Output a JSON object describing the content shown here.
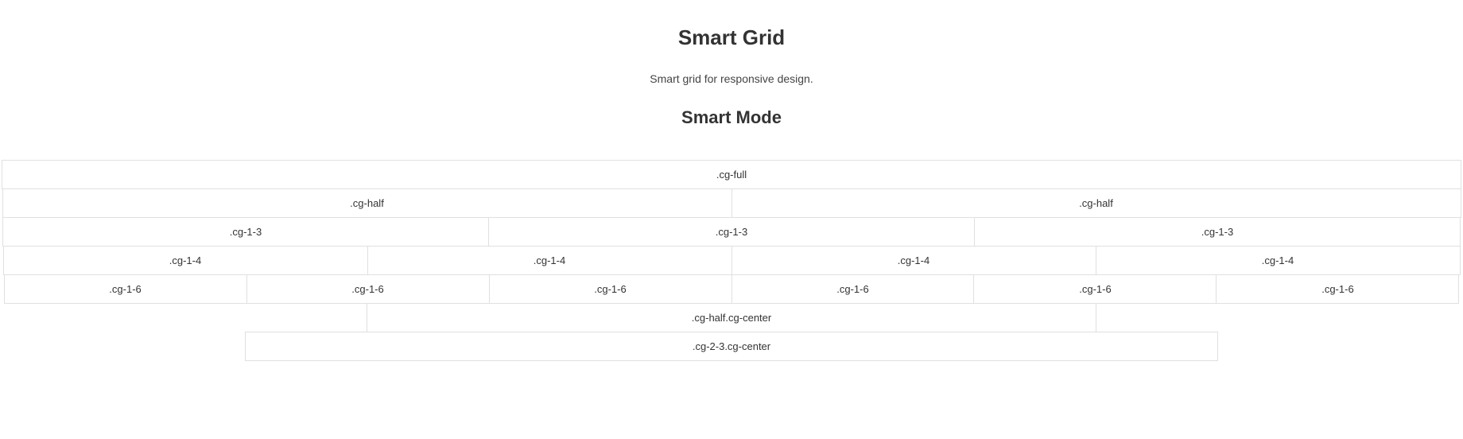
{
  "header": {
    "title": "Smart Grid",
    "subtitle": "Smart grid for responsive design.",
    "section_title": "Smart Mode"
  },
  "grid": {
    "border_color": "#e0e0e0",
    "background_color": "#ffffff",
    "cell_font_size": 13,
    "rows": [
      {
        "cells": [
          {
            "label": ".cg-full",
            "fraction": "full"
          }
        ]
      },
      {
        "cells": [
          {
            "label": ".cg-half",
            "fraction": "half"
          },
          {
            "label": ".cg-half",
            "fraction": "half"
          }
        ]
      },
      {
        "cells": [
          {
            "label": ".cg-1-3",
            "fraction": "1-3"
          },
          {
            "label": ".cg-1-3",
            "fraction": "1-3"
          },
          {
            "label": ".cg-1-3",
            "fraction": "1-3"
          }
        ]
      },
      {
        "cells": [
          {
            "label": ".cg-1-4",
            "fraction": "1-4"
          },
          {
            "label": ".cg-1-4",
            "fraction": "1-4"
          },
          {
            "label": ".cg-1-4",
            "fraction": "1-4"
          },
          {
            "label": ".cg-1-4",
            "fraction": "1-4"
          }
        ]
      },
      {
        "cells": [
          {
            "label": ".cg-1-6",
            "fraction": "1-6"
          },
          {
            "label": ".cg-1-6",
            "fraction": "1-6"
          },
          {
            "label": ".cg-1-6",
            "fraction": "1-6"
          },
          {
            "label": ".cg-1-6",
            "fraction": "1-6"
          },
          {
            "label": ".cg-1-6",
            "fraction": "1-6"
          },
          {
            "label": ".cg-1-6",
            "fraction": "1-6"
          }
        ]
      },
      {
        "centered": true,
        "cells": [
          {
            "label": ".cg-half.cg-center",
            "fraction": "half"
          }
        ]
      },
      {
        "centered": true,
        "cells": [
          {
            "label": ".cg-2-3.cg-center",
            "fraction": "2-3"
          }
        ]
      }
    ]
  }
}
